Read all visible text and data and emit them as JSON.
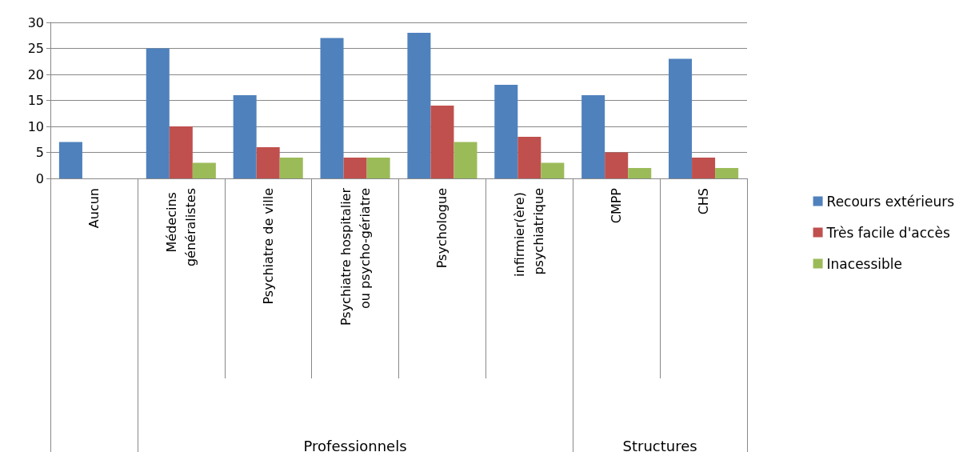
{
  "chart_data": {
    "type": "bar",
    "categories": [
      "Aucun",
      "Médecins généralistes",
      "Psychiatre de ville",
      "Psychiatre hospitalier ou psycho-gériatre",
      "Psychologue",
      "infirmier(ère) psychiatrique",
      "CMPP",
      "CHS"
    ],
    "series": [
      {
        "name": "Recours extérieurs",
        "color": "#4f81bd",
        "values": [
          7,
          25,
          16,
          27,
          28,
          18,
          16,
          23
        ]
      },
      {
        "name": "Très facile d'accès",
        "color": "#c0504d",
        "values": [
          0,
          10,
          6,
          4,
          14,
          8,
          5,
          4
        ]
      },
      {
        "name": "Inacessible",
        "color": "#9bbb59",
        "values": [
          0,
          3,
          4,
          4,
          7,
          3,
          2,
          2
        ]
      }
    ],
    "ylim": [
      0,
      30
    ],
    "yticks": [
      0,
      5,
      10,
      15,
      20,
      25,
      30
    ],
    "grid": "y",
    "legend": "right",
    "annotations": [
      "Professionnels",
      "Structures"
    ]
  }
}
